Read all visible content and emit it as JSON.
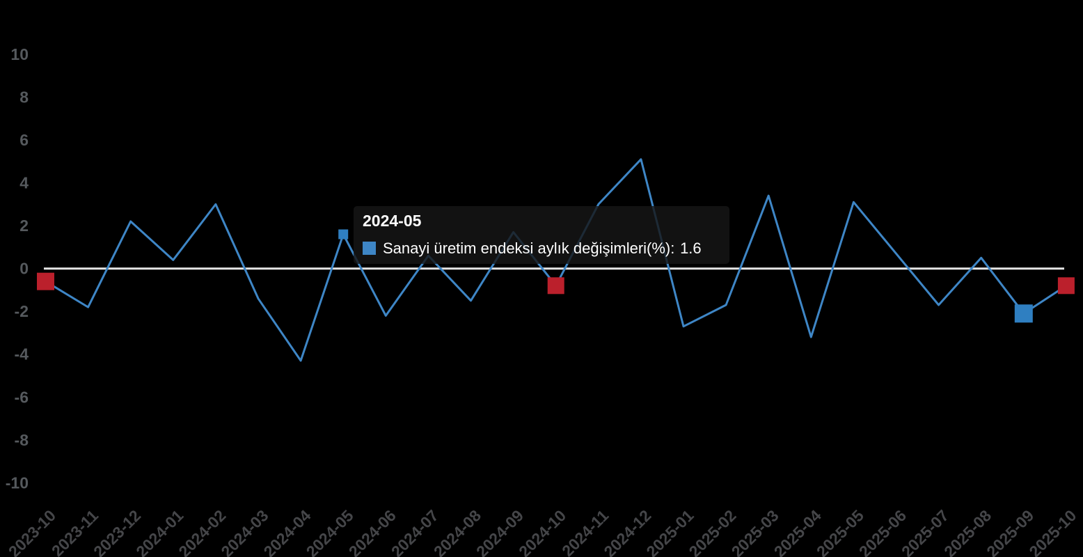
{
  "tooltip": {
    "title": "2024-05",
    "label": "Sanayi üretim endeksi aylık değişimleri(%):",
    "value": "1.6"
  },
  "chart_data": {
    "type": "line",
    "title": "",
    "xlabel": "",
    "ylabel": "",
    "x": [
      "2023-10",
      "2023-11",
      "2023-12",
      "2024-01",
      "2024-02",
      "2024-03",
      "2024-04",
      "2024-05",
      "2024-06",
      "2024-07",
      "2024-08",
      "2024-09",
      "2024-10",
      "2024-11",
      "2024-12",
      "2025-01",
      "2025-02",
      "2025-03",
      "2025-04",
      "2025-05",
      "2025-06",
      "2025-07",
      "2025-08",
      "2025-09",
      "2025-10"
    ],
    "series": [
      {
        "name": "Sanayi üretim endeksi aylık değişimleri(%)",
        "color": "#3e86c6",
        "values": [
          -0.6,
          -1.8,
          2.2,
          0.4,
          3.0,
          -1.4,
          -4.3,
          1.6,
          -2.2,
          0.6,
          -1.5,
          1.7,
          -0.8,
          3.0,
          5.1,
          -2.7,
          -1.7,
          3.4,
          -3.2,
          3.1,
          0.7,
          -1.7,
          0.5,
          -2.1,
          -0.8
        ]
      }
    ],
    "ylim": [
      -10,
      10
    ],
    "yticks": [
      10,
      8,
      6,
      4,
      2,
      0,
      -2,
      -4,
      -6,
      -8,
      -10
    ],
    "grid": "zero-line-only",
    "legend_position": "tooltip-only",
    "background_color": "#000000",
    "zero_line_color": "#e6e6e6",
    "y_label_color": "#55595d",
    "x_label_color": "#454649",
    "highlight_markers": [
      {
        "x": "2023-10",
        "index": 0,
        "value": -0.6,
        "shape": "square",
        "color": "#bb202c",
        "size": 25
      },
      {
        "x": "2024-05",
        "index": 7,
        "value": 1.6,
        "shape": "square",
        "color": "#2f7fc1",
        "size": 14,
        "hovered": true
      },
      {
        "x": "2024-10",
        "index": 12,
        "value": -0.8,
        "shape": "square",
        "color": "#bb202c",
        "size": 24
      },
      {
        "x": "2025-09",
        "index": 23,
        "value": -2.1,
        "shape": "square",
        "color": "#2f7fc1",
        "size": 26
      },
      {
        "x": "2025-10",
        "index": 24,
        "value": -0.8,
        "shape": "square",
        "color": "#bb202c",
        "size": 24
      }
    ]
  }
}
